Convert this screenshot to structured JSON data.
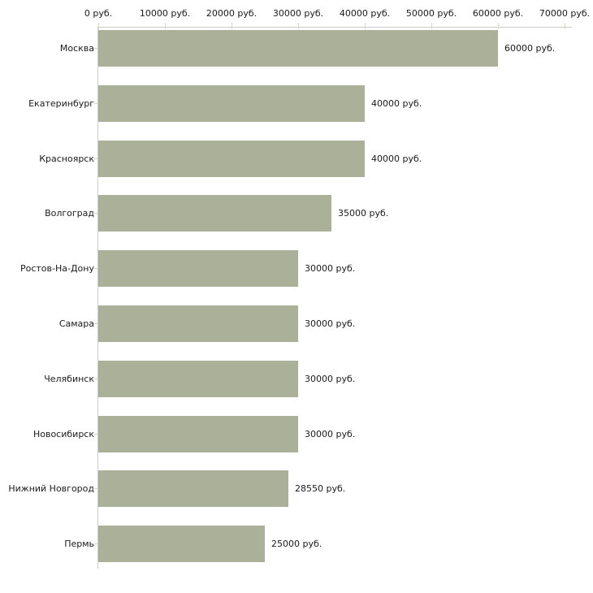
{
  "chart_data": {
    "type": "bar",
    "orientation": "horizontal",
    "title": "",
    "xlabel": "",
    "ylabel": "",
    "unit": "руб.",
    "xlim": [
      0,
      70000
    ],
    "grid": false,
    "axis_position": "top",
    "legend": "none",
    "categories": [
      "Москва",
      "Екатеринбург",
      "Красноярск",
      "Волгоград",
      "Ростов-На-Дону",
      "Самара",
      "Челябинск",
      "Новосибирск",
      "Нижний Новгород",
      "Пермь"
    ],
    "values": [
      60000,
      40000,
      40000,
      35000,
      30000,
      30000,
      30000,
      30000,
      28550,
      25000
    ],
    "value_labels": [
      "60000 руб.",
      "40000 руб.",
      "40000 руб.",
      "35000 руб.",
      "30000 руб.",
      "30000 руб.",
      "30000 руб.",
      "30000 руб.",
      "28550 руб.",
      "25000 руб."
    ],
    "x_ticks": [
      0,
      10000,
      20000,
      30000,
      40000,
      50000,
      60000,
      70000
    ],
    "x_tick_labels": [
      "0 руб.",
      "10000 руб.",
      "20000 руб.",
      "30000 руб.",
      "40000 руб.",
      "50000 руб.",
      "60000 руб.",
      "70000 руб."
    ],
    "colors": {
      "bar": "#abb198",
      "axis_line": "#cccccc",
      "tick": "#d6d8ba",
      "text": "#1a1a1a",
      "background": "#ffffff"
    }
  }
}
